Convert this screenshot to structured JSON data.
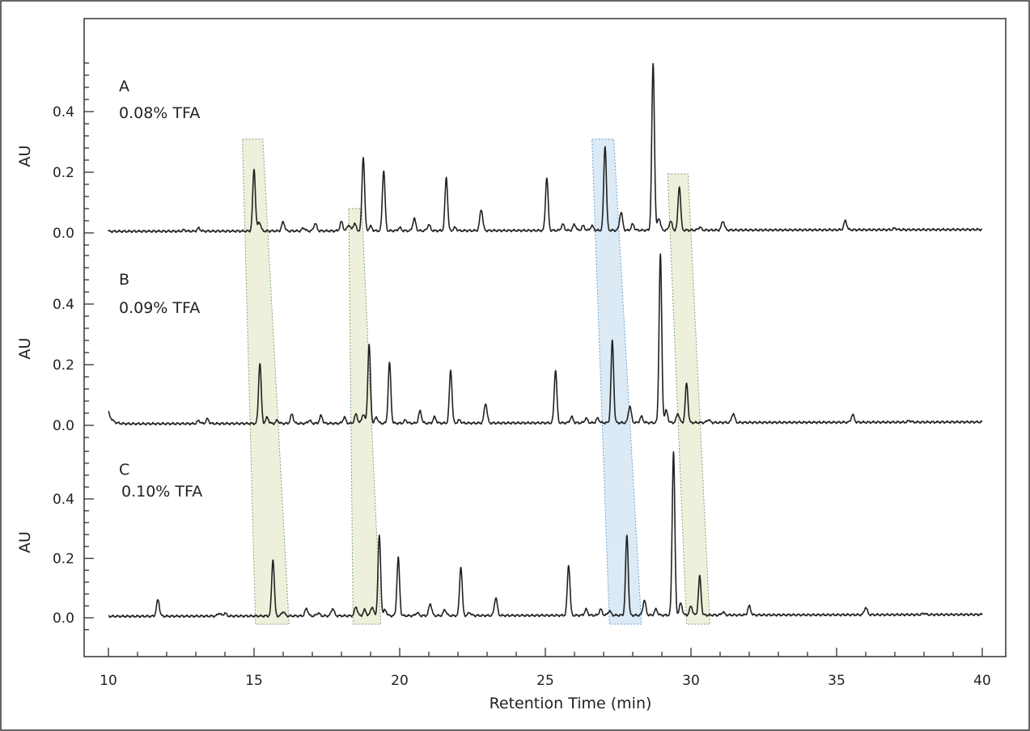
{
  "chart_data": {
    "type": "line",
    "title": "",
    "xlabel": "Retention Time (min)",
    "ylabel": "AU",
    "xlim": [
      10,
      40
    ],
    "x_ticks": [
      "10",
      "15",
      "20",
      "25",
      "30",
      "35",
      "40"
    ],
    "y_ticks": [
      "0.0",
      "0.2",
      "0.4"
    ],
    "grid": false,
    "legend": "none",
    "colors": {
      "trace": "#222222",
      "olive_band": "#eef0dc",
      "blue_band": "#dbeaf5",
      "band_border": "#7aa37a",
      "blue_border": "#6f9fd0"
    },
    "panels": [
      {
        "id": "A",
        "label": "A",
        "condition": "0.08% TFA",
        "ylim": [
          -0.06,
          0.58
        ],
        "baseline": 0.005,
        "peaks": [
          [
            12.6,
            0.004
          ],
          [
            13.1,
            0.01
          ],
          [
            15.0,
            0.205
          ],
          [
            15.18,
            0.03
          ],
          [
            16.0,
            0.03
          ],
          [
            16.7,
            0.01
          ],
          [
            17.1,
            0.025
          ],
          [
            18.0,
            0.03
          ],
          [
            18.25,
            0.02
          ],
          [
            18.45,
            0.025
          ],
          [
            18.75,
            0.245
          ],
          [
            19.0,
            0.015
          ],
          [
            19.45,
            0.2
          ],
          [
            20.0,
            0.01
          ],
          [
            20.5,
            0.04
          ],
          [
            21.0,
            0.02
          ],
          [
            21.6,
            0.175
          ],
          [
            21.9,
            0.01
          ],
          [
            22.8,
            0.07
          ],
          [
            25.05,
            0.175
          ],
          [
            25.6,
            0.02
          ],
          [
            26.0,
            0.02
          ],
          [
            26.3,
            0.015
          ],
          [
            26.6,
            0.015
          ],
          [
            27.05,
            0.28
          ],
          [
            27.6,
            0.06
          ],
          [
            28.0,
            0.02
          ],
          [
            28.7,
            0.55
          ],
          [
            28.9,
            0.04
          ],
          [
            29.3,
            0.03
          ],
          [
            29.6,
            0.145
          ],
          [
            30.3,
            0.01
          ],
          [
            31.1,
            0.03
          ],
          [
            35.3,
            0.03
          ],
          [
            37.0,
            0.005
          ]
        ]
      },
      {
        "id": "B",
        "label": "B",
        "condition": "0.09% TFA",
        "ylim": [
          -0.06,
          0.58
        ],
        "baseline": 0.005,
        "peaks": [
          [
            13.1,
            0.01
          ],
          [
            13.4,
            0.015
          ],
          [
            15.2,
            0.2
          ],
          [
            15.45,
            0.02
          ],
          [
            15.8,
            0.01
          ],
          [
            16.3,
            0.03
          ],
          [
            16.9,
            0.01
          ],
          [
            17.3,
            0.025
          ],
          [
            18.1,
            0.02
          ],
          [
            18.5,
            0.03
          ],
          [
            18.75,
            0.03
          ],
          [
            18.95,
            0.26
          ],
          [
            19.2,
            0.02
          ],
          [
            19.65,
            0.2
          ],
          [
            20.2,
            0.01
          ],
          [
            20.7,
            0.04
          ],
          [
            21.2,
            0.02
          ],
          [
            21.75,
            0.175
          ],
          [
            22.05,
            0.01
          ],
          [
            22.95,
            0.065
          ],
          [
            25.35,
            0.175
          ],
          [
            25.9,
            0.02
          ],
          [
            26.4,
            0.015
          ],
          [
            26.8,
            0.015
          ],
          [
            27.3,
            0.27
          ],
          [
            27.9,
            0.055
          ],
          [
            28.3,
            0.02
          ],
          [
            28.95,
            0.555
          ],
          [
            29.15,
            0.04
          ],
          [
            29.55,
            0.03
          ],
          [
            29.85,
            0.13
          ],
          [
            30.6,
            0.01
          ],
          [
            31.45,
            0.03
          ],
          [
            35.55,
            0.025
          ],
          [
            37.5,
            0.005
          ]
        ]
      },
      {
        "id": "C",
        "label": "C",
        "condition": "0.10% TFA",
        "ylim": [
          -0.06,
          0.58
        ],
        "baseline": 0.005,
        "peaks": [
          [
            11.7,
            0.055
          ],
          [
            13.8,
            0.01
          ],
          [
            14.0,
            0.01
          ],
          [
            15.65,
            0.19
          ],
          [
            16.0,
            0.015
          ],
          [
            16.8,
            0.025
          ],
          [
            17.2,
            0.01
          ],
          [
            17.7,
            0.025
          ],
          [
            18.5,
            0.03
          ],
          [
            18.8,
            0.02
          ],
          [
            19.05,
            0.03
          ],
          [
            19.3,
            0.27
          ],
          [
            19.5,
            0.02
          ],
          [
            19.95,
            0.195
          ],
          [
            20.6,
            0.01
          ],
          [
            21.05,
            0.04
          ],
          [
            21.55,
            0.02
          ],
          [
            22.1,
            0.165
          ],
          [
            22.4,
            0.01
          ],
          [
            23.3,
            0.06
          ],
          [
            25.8,
            0.17
          ],
          [
            26.4,
            0.02
          ],
          [
            26.9,
            0.02
          ],
          [
            27.2,
            0.015
          ],
          [
            27.8,
            0.27
          ],
          [
            28.4,
            0.05
          ],
          [
            28.8,
            0.02
          ],
          [
            29.4,
            0.55
          ],
          [
            29.65,
            0.04
          ],
          [
            30.0,
            0.03
          ],
          [
            30.3,
            0.13
          ],
          [
            31.1,
            0.01
          ],
          [
            32.0,
            0.03
          ],
          [
            36.0,
            0.025
          ],
          [
            38.0,
            0.005
          ]
        ]
      }
    ],
    "highlight_bands": [
      {
        "color": "olive",
        "A": [
          14.6,
          15.3
        ],
        "C": [
          15.05,
          16.2
        ]
      },
      {
        "color": "olive",
        "A": [
          18.25,
          18.7
        ],
        "C": [
          18.4,
          19.35
        ]
      },
      {
        "color": "blue",
        "A": [
          26.6,
          27.35
        ],
        "C": [
          27.2,
          28.3
        ]
      },
      {
        "color": "olive",
        "A": [
          29.2,
          29.9
        ],
        "C": [
          29.85,
          30.65
        ]
      }
    ]
  }
}
